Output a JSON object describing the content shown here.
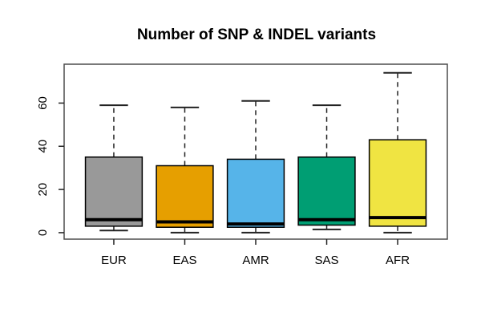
{
  "chart_data": {
    "type": "boxplot",
    "title": "Number of SNP & INDEL variants",
    "xlabel": "",
    "ylabel": "",
    "categories": [
      "EUR",
      "EAS",
      "AMR",
      "SAS",
      "AFR"
    ],
    "series": [
      {
        "name": "EUR",
        "color": "#999999",
        "stats": {
          "whisker_low": 1,
          "q1": 3,
          "median": 6,
          "q3": 35,
          "whisker_high": 59
        }
      },
      {
        "name": "EAS",
        "color": "#E69F00",
        "stats": {
          "whisker_low": 0,
          "q1": 2.5,
          "median": 5,
          "q3": 31,
          "whisker_high": 58
        }
      },
      {
        "name": "AMR",
        "color": "#56B4E9",
        "stats": {
          "whisker_low": 0,
          "q1": 2.5,
          "median": 4,
          "q3": 34,
          "whisker_high": 61
        }
      },
      {
        "name": "SAS",
        "color": "#009E73",
        "stats": {
          "whisker_low": 1.5,
          "q1": 3.5,
          "median": 6,
          "q3": 35,
          "whisker_high": 59
        }
      },
      {
        "name": "AFR",
        "color": "#F0E442",
        "stats": {
          "whisker_low": 0,
          "q1": 3,
          "median": 7,
          "q3": 43,
          "whisker_high": 74
        }
      }
    ],
    "y_ticks": [
      0,
      20,
      40,
      60
    ],
    "ylim": [
      -3,
      78
    ],
    "xlim": [
      0.3,
      5.7
    ],
    "grid": false,
    "legend": "none",
    "frame_color": "#4d4d4d",
    "axis_color": "#222222",
    "box_border_color": "#000000",
    "median_color": "#000000"
  }
}
